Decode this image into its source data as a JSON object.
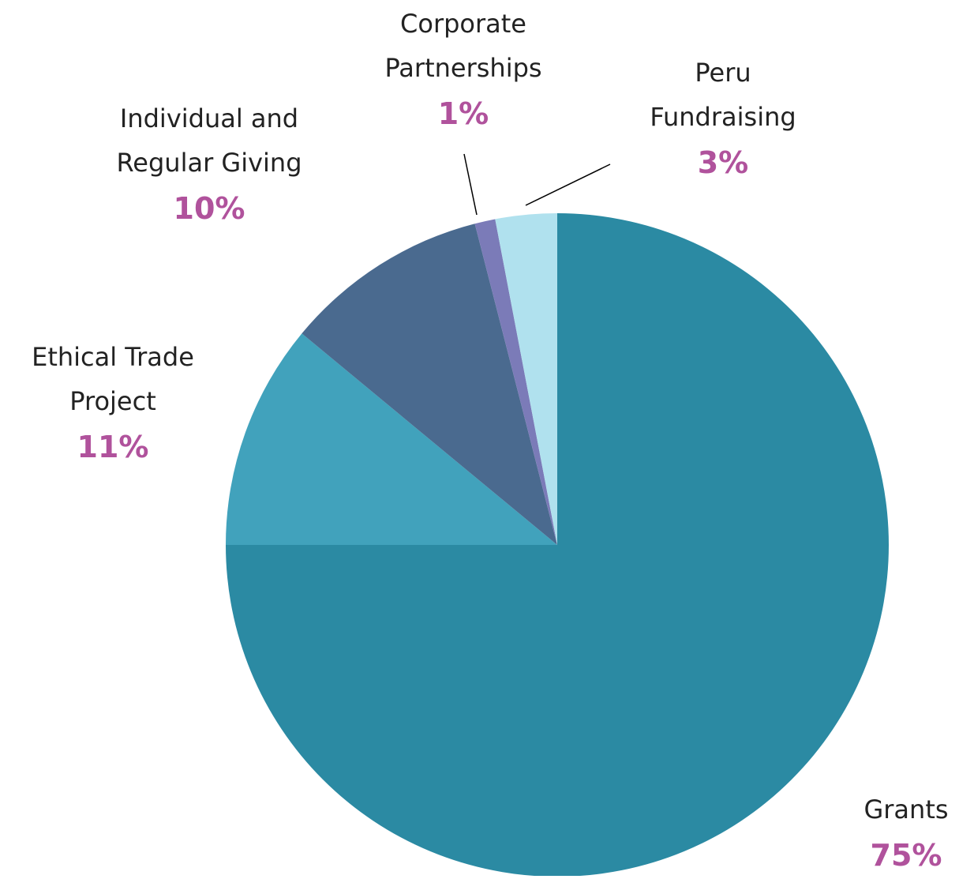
{
  "chart_data": {
    "type": "pie",
    "categories": [
      "Grants",
      "Ethical Trade Project",
      "Individual and Regular Giving",
      "Corporate Partnerships",
      "Peru Fundraising"
    ],
    "values": [
      75,
      11,
      10,
      1,
      3
    ],
    "value_labels": [
      "75%",
      "11%",
      "10%",
      "1%",
      "3%"
    ],
    "colors": [
      "#2b8aa3",
      "#41a2bc",
      "#4a6a8f",
      "#7b7bb8",
      "#b0e1ee"
    ]
  }
}
